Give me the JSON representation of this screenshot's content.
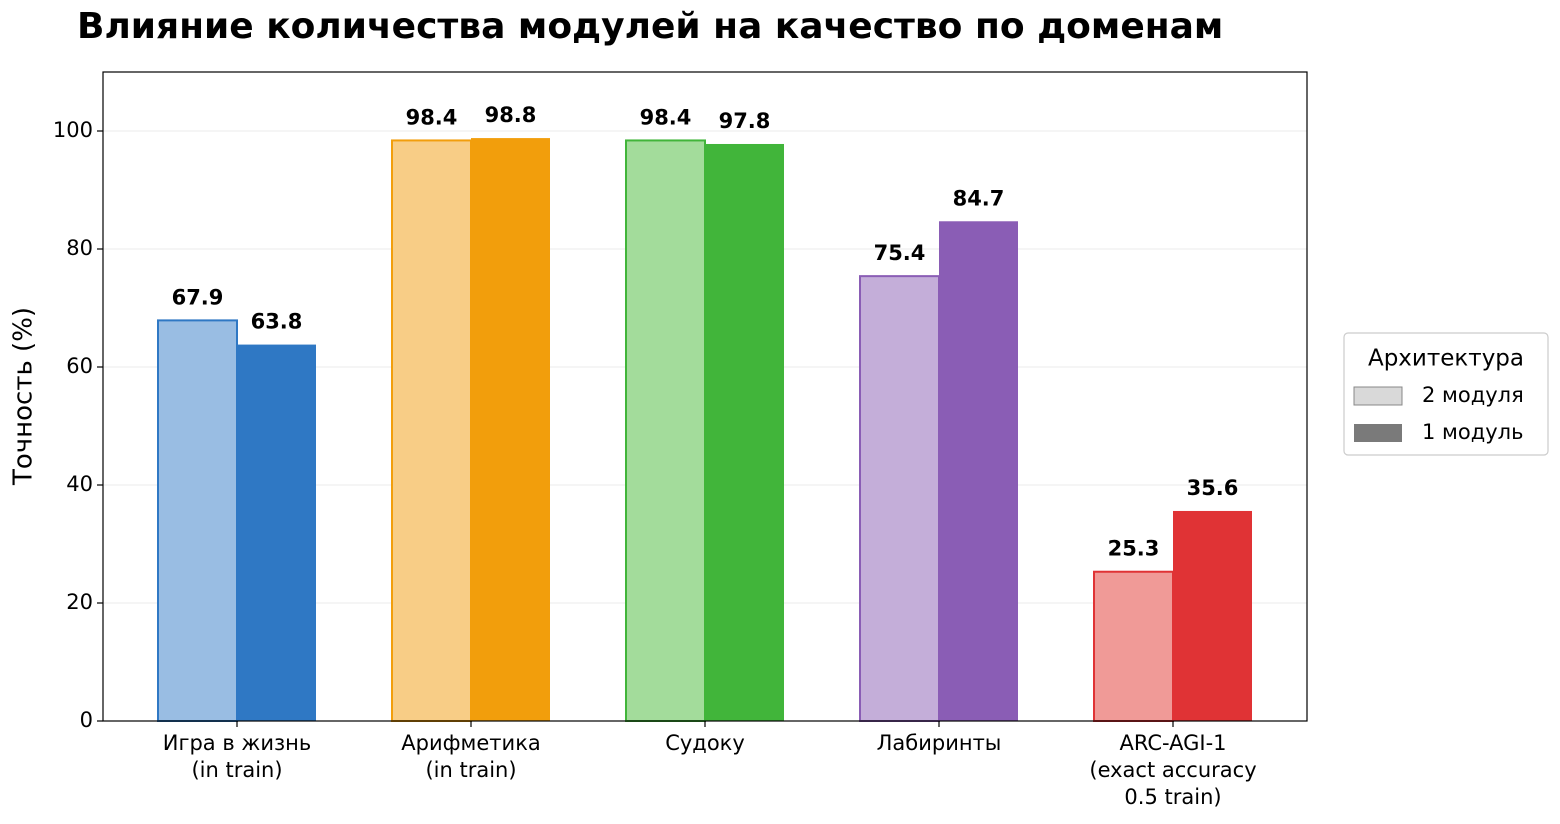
{
  "chart_data": {
    "type": "bar",
    "title": "Влияние количества модулей на качество по доменам",
    "y_label": "Точность (%)",
    "categories": [
      "Игра в жизнь\n(in train)",
      "Арифметика\n(in train)",
      "Судоку",
      "Лабиринты",
      "ARC-AGI-1\n(exact accuracy\n0.5 train)"
    ],
    "series": [
      {
        "name": "2 модуля",
        "color": "#d9d9d9",
        "colors": [
          "#99bde3",
          "#f8cd86",
          "#a3dc9b",
          "#c4aed9",
          "#f09a97"
        ],
        "values": [
          67.9,
          98.4,
          98.4,
          75.4,
          25.3
        ]
      },
      {
        "name": "1 модуль",
        "color": "#7a7a7a",
        "colors": [
          "#2f78c4",
          "#f29e0c",
          "#41b53a",
          "#8a5db5",
          "#e03335"
        ],
        "values": [
          63.8,
          98.8,
          97.8,
          84.7,
          35.6
        ]
      }
    ],
    "legend_title": "Архитектура",
    "legend": "right",
    "ylim": [
      0,
      110
    ],
    "yticks": [
      0,
      20,
      40,
      60,
      80,
      100
    ],
    "grid": true
  }
}
